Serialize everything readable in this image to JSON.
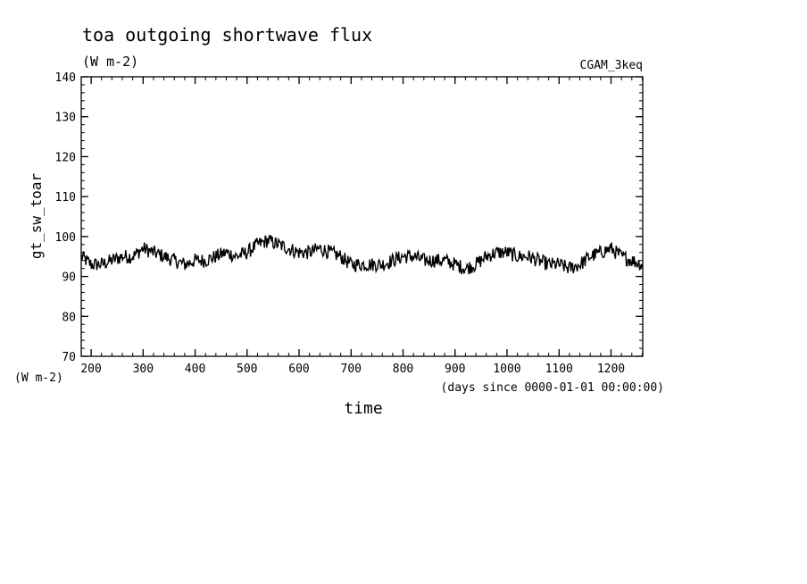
{
  "chart_data": {
    "type": "line",
    "title": "toa outgoing shortwave flux",
    "units": "(W m-2)",
    "run_label": "CGAM_3keq",
    "ylabel": "gt_sw_toar",
    "ylabel_units": "(W m-2)",
    "xlabel": "time",
    "xlabel_units": "(days since 0000-01-01 00:00:00)",
    "xlim": [
      181,
      1261
    ],
    "ylim": [
      70,
      140
    ],
    "x_ticks": [
      200,
      300,
      400,
      500,
      600,
      700,
      800,
      900,
      1000,
      1100,
      1200
    ],
    "y_ticks": [
      70,
      80,
      90,
      100,
      110,
      120,
      130,
      140
    ],
    "grid": false,
    "line_color": "#000000",
    "series": [
      {
        "x": [
          181,
          200,
          220,
          240,
          260,
          280,
          300,
          320,
          340,
          360,
          380,
          400,
          420,
          440,
          460,
          480,
          500,
          520,
          540,
          560,
          580,
          600,
          620,
          640,
          660,
          680,
          700,
          720,
          740,
          760,
          780,
          800,
          820,
          840,
          860,
          880,
          900,
          920,
          940,
          960,
          980,
          1000,
          1020,
          1040,
          1060,
          1080,
          1100,
          1120,
          1140,
          1160,
          1180,
          1200,
          1220,
          1240,
          1261
        ],
        "values": [
          95,
          93,
          93,
          94,
          95,
          95,
          97,
          96,
          95,
          94,
          93,
          94,
          94,
          95,
          96,
          95,
          96,
          98,
          99,
          98,
          97,
          96,
          96,
          97,
          96,
          95,
          93,
          93,
          93,
          93,
          94,
          95,
          95,
          94,
          94,
          94,
          93,
          92,
          93,
          95,
          96,
          96,
          95,
          95,
          94,
          93,
          93,
          92,
          93,
          95,
          96,
          97,
          95,
          94,
          93
        ]
      }
    ]
  }
}
